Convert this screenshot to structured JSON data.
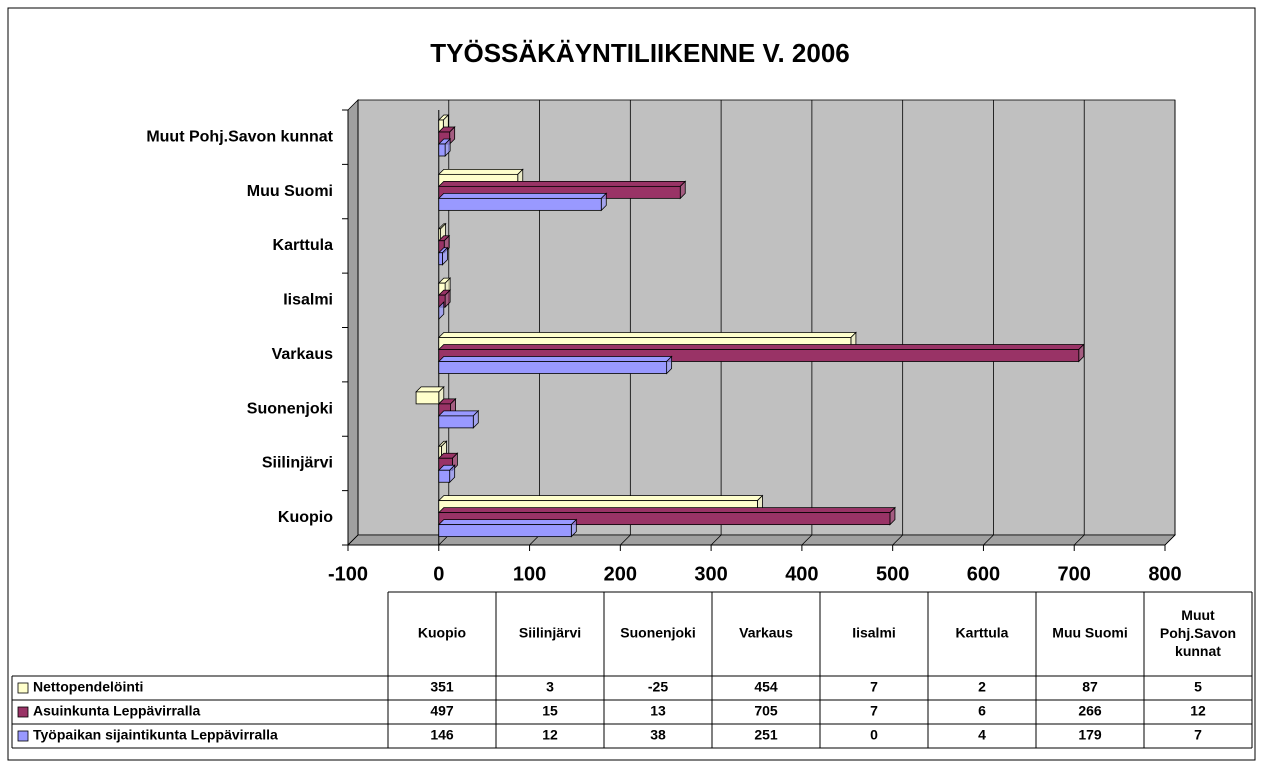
{
  "chart_data": {
    "type": "bar",
    "orientation": "horizontal",
    "title": "TYÖSSÄKÄYNTILIIKENNE V. 2006",
    "categories": [
      "Kuopio",
      "Siilinjärvi",
      "Suonenjoki",
      "Varkaus",
      "Iisalmi",
      "Karttula",
      "Muu Suomi",
      "Muut Pohj.Savon kunnat"
    ],
    "series": [
      {
        "name": "Nettopendelöinti",
        "color": "#ffffcc",
        "values": [
          351,
          3,
          -25,
          454,
          7,
          2,
          87,
          5
        ]
      },
      {
        "name": "Asuinkunta Leppävirralla",
        "color": "#993366",
        "values": [
          497,
          15,
          13,
          705,
          7,
          6,
          266,
          12
        ]
      },
      {
        "name": "Työpaikan sijaintikunta Leppävirralla",
        "color": "#9999ff",
        "values": [
          146,
          12,
          38,
          251,
          0,
          4,
          179,
          7
        ]
      }
    ],
    "xlim": [
      -100,
      800
    ],
    "xticks": [
      -100,
      0,
      100,
      200,
      300,
      400,
      500,
      600,
      700,
      800
    ],
    "grid": true
  }
}
